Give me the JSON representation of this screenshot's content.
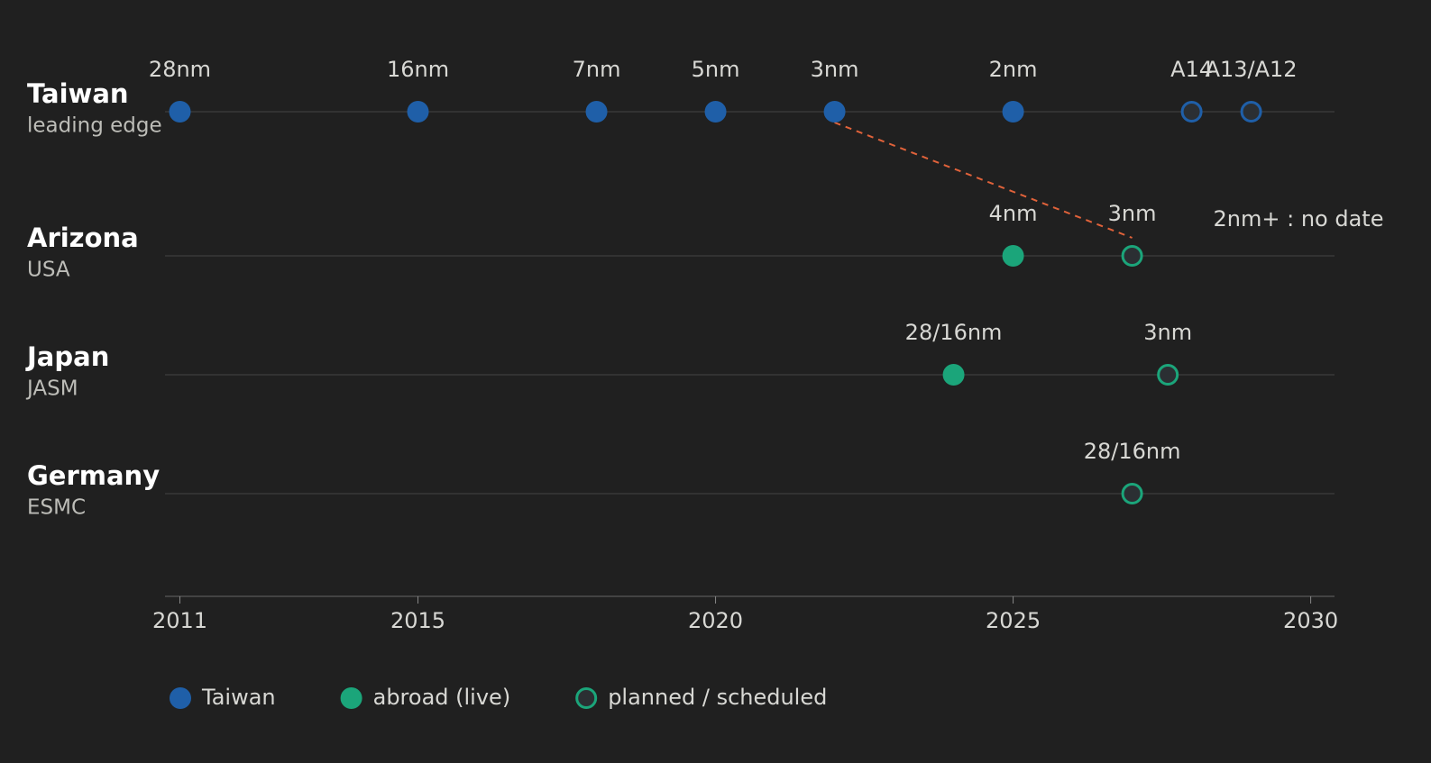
{
  "chart_data": {
    "type": "timeline",
    "xlim": [
      2010.75,
      2030.4
    ],
    "xticks": [
      2011,
      2015,
      2020,
      2025,
      2030
    ],
    "series": [
      {
        "name": "Taiwan",
        "subtitle": "leading edge",
        "color": "#1f5fa8",
        "x": [
          2011,
          2015,
          2018,
          2020,
          2022,
          2025,
          2028,
          2029
        ],
        "labels": [
          "28nm",
          "16nm",
          "7nm",
          "5nm",
          "3nm",
          "2nm",
          "A14",
          "A13/A12"
        ],
        "planned": [
          false,
          false,
          false,
          false,
          false,
          false,
          true,
          true
        ]
      },
      {
        "name": "Arizona",
        "subtitle": "USA",
        "color": "#1ba57a",
        "x": [
          2025,
          2027
        ],
        "labels": [
          "4nm",
          "3nm"
        ],
        "planned": [
          false,
          true
        ],
        "annotation": "2nm+ : no date"
      },
      {
        "name": "Japan",
        "subtitle": "JASM",
        "color": "#1ba57a",
        "x": [
          2024,
          2027.6
        ],
        "labels": [
          "28/16nm",
          "3nm"
        ],
        "planned": [
          false,
          true
        ]
      },
      {
        "name": "Germany",
        "subtitle": "ESMC",
        "color": "#1ba57a",
        "x": [
          2027
        ],
        "labels": [
          "28/16nm"
        ],
        "planned": [
          true
        ]
      }
    ],
    "connector_color": "#e0623a",
    "legend": [
      {
        "label": "Taiwan",
        "color": "#1f5fa8",
        "style": "filled"
      },
      {
        "label": "abroad (live)",
        "color": "#1ba57a",
        "style": "filled"
      },
      {
        "label": "planned / scheduled",
        "color": "#1ba57a",
        "style": "open"
      }
    ]
  }
}
